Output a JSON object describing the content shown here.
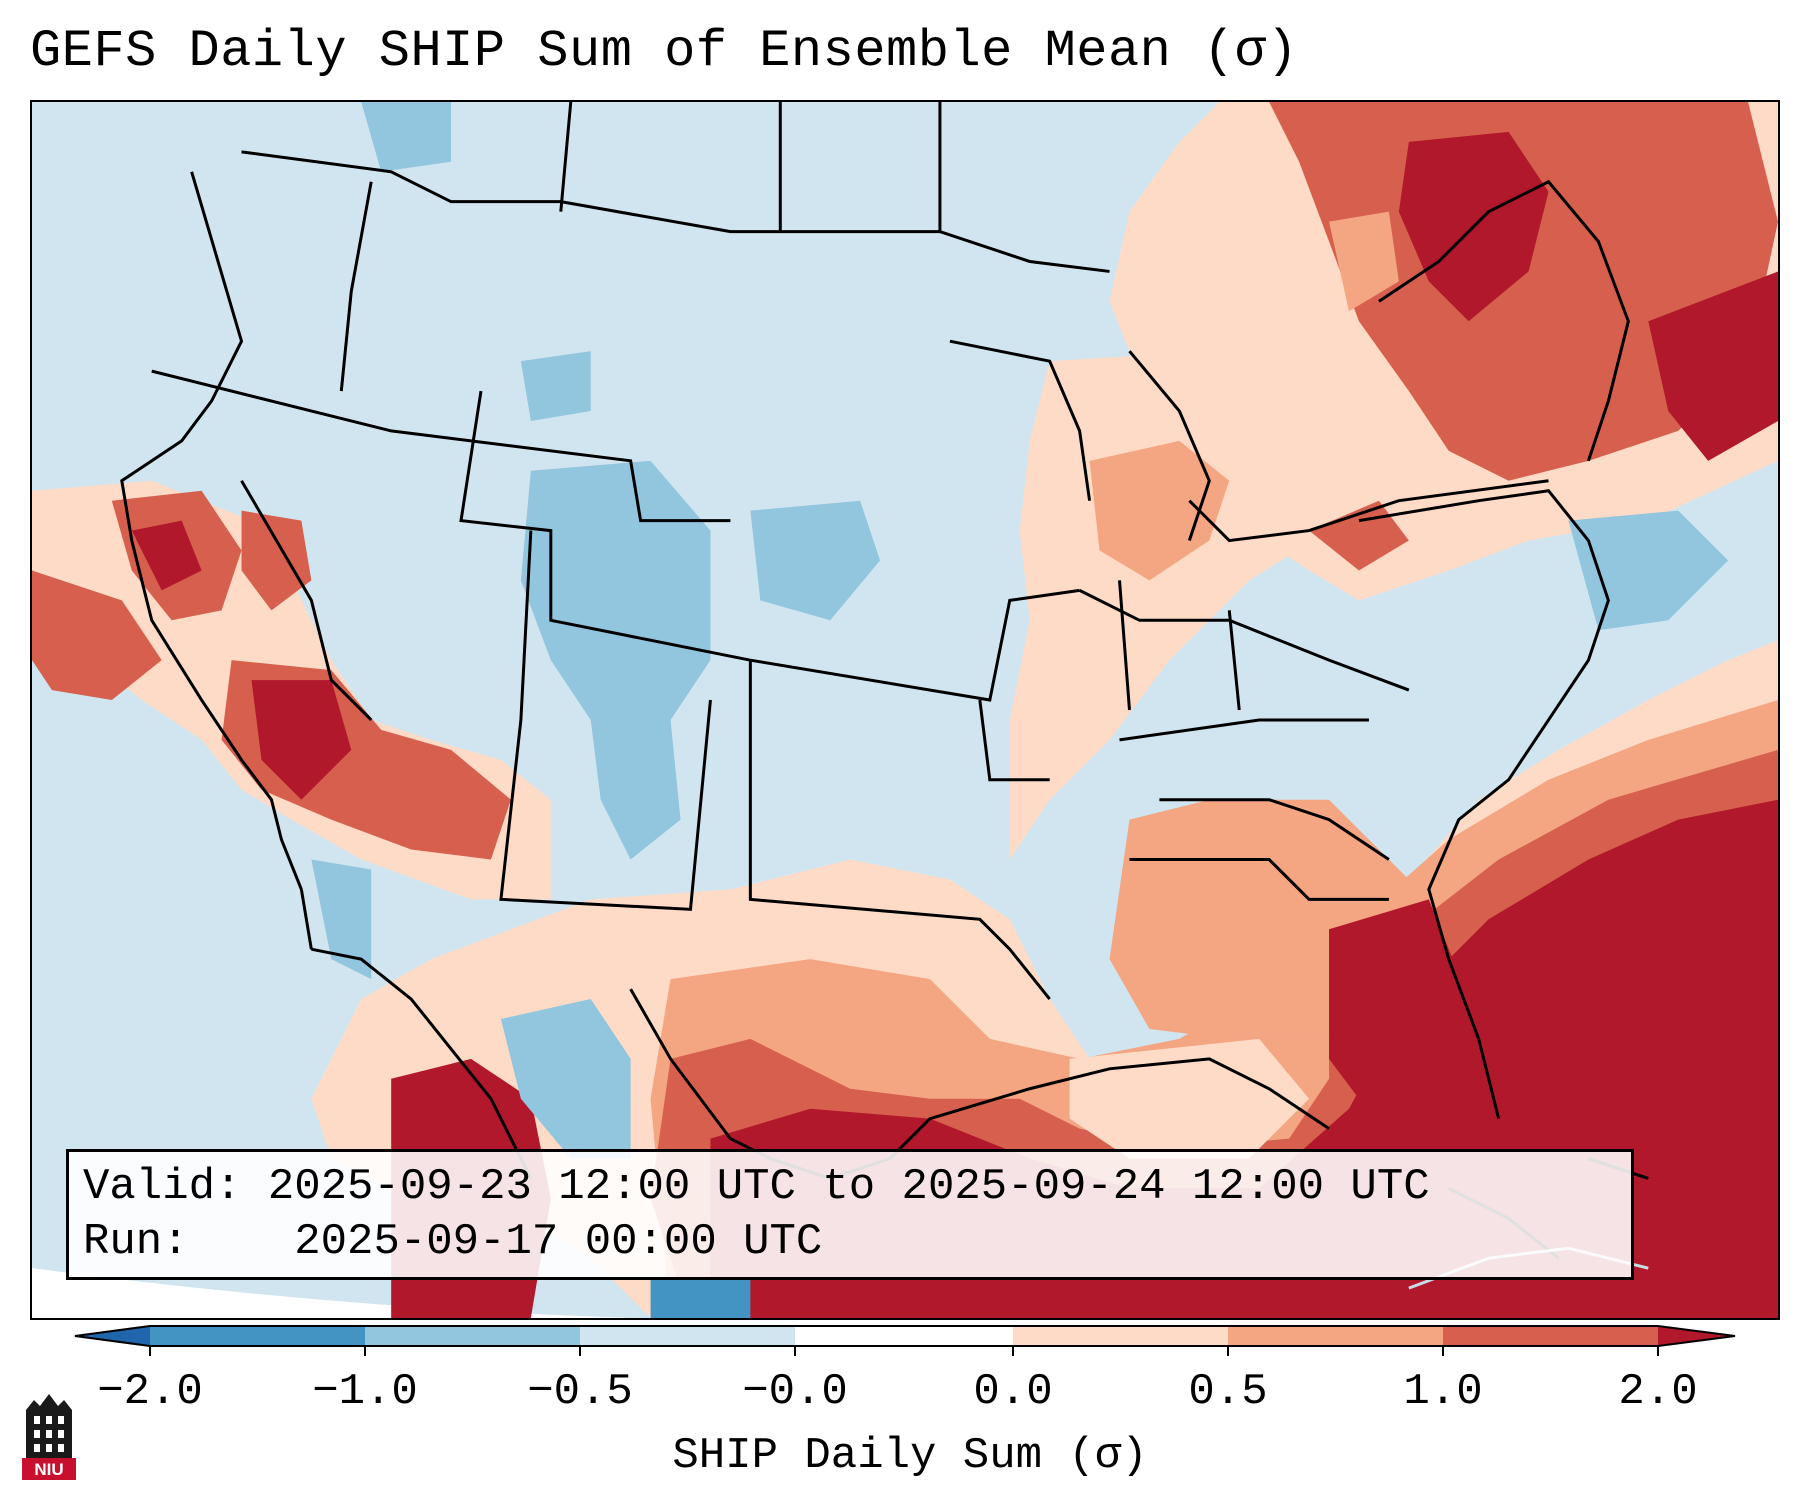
{
  "title": "GEFS Daily SHIP Sum of Ensemble Mean (σ)",
  "info": {
    "valid_label": "Valid:",
    "valid_value": "2025-09-23 12:00 UTC to 2025-09-24 12:00 UTC",
    "run_label": "Run:",
    "run_value": "2025-09-17 00:00 UTC"
  },
  "colorbar": {
    "label": "SHIP Daily Sum (σ)",
    "ticks": [
      "−2.0",
      "−1.0",
      "−0.5",
      "−0.0",
      "0.0",
      "0.5",
      "1.0",
      "2.0"
    ],
    "colors": [
      "#2166ac",
      "#4393c3",
      "#92c5de",
      "#d1e5f0",
      "#ffffff",
      "#fddbc7",
      "#f4a582",
      "#d6604d",
      "#b2182b"
    ]
  },
  "logo": {
    "text": "NIU",
    "icon": "niu-tower-icon"
  }
}
